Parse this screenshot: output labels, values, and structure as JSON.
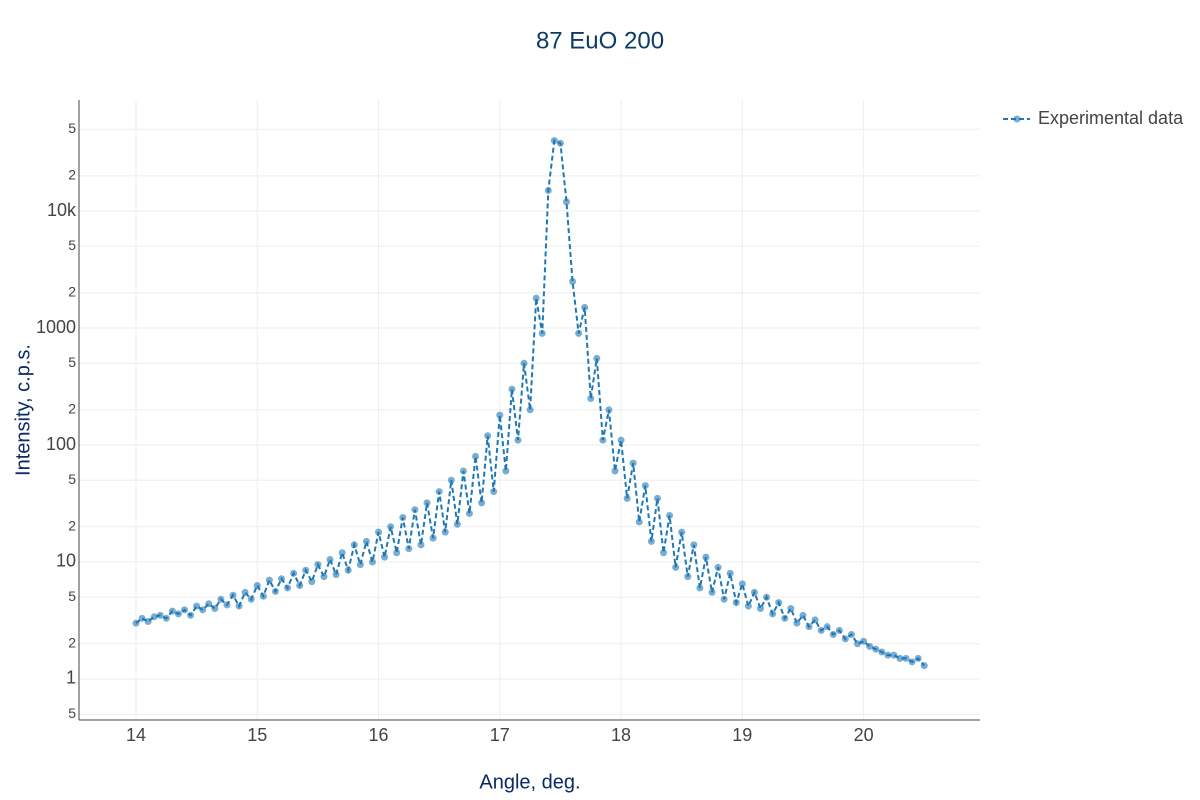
{
  "chart_data": {
    "type": "line",
    "title": "87 EuO 200",
    "xlabel": "Angle, deg.",
    "ylabel": "Intensity, c.p.s.",
    "x": [
      14.0,
      14.05,
      14.1,
      14.15,
      14.2,
      14.25,
      14.3,
      14.35,
      14.4,
      14.45,
      14.5,
      14.55,
      14.6,
      14.65,
      14.7,
      14.75,
      14.8,
      14.85,
      14.9,
      14.95,
      15.0,
      15.05,
      15.1,
      15.15,
      15.2,
      15.25,
      15.3,
      15.35,
      15.4,
      15.45,
      15.5,
      15.55,
      15.6,
      15.65,
      15.7,
      15.75,
      15.8,
      15.85,
      15.9,
      15.95,
      16.0,
      16.05,
      16.1,
      16.15,
      16.2,
      16.25,
      16.3,
      16.35,
      16.4,
      16.45,
      16.5,
      16.55,
      16.6,
      16.65,
      16.7,
      16.75,
      16.8,
      16.85,
      16.9,
      16.95,
      17.0,
      17.05,
      17.1,
      17.15,
      17.2,
      17.25,
      17.3,
      17.35,
      17.4,
      17.45,
      17.5,
      17.55,
      17.6,
      17.65,
      17.7,
      17.75,
      17.8,
      17.85,
      17.9,
      17.95,
      18.0,
      18.05,
      18.1,
      18.15,
      18.2,
      18.25,
      18.3,
      18.35,
      18.4,
      18.45,
      18.5,
      18.55,
      18.6,
      18.65,
      18.7,
      18.75,
      18.8,
      18.85,
      18.9,
      18.95,
      19.0,
      19.05,
      19.1,
      19.15,
      19.2,
      19.25,
      19.3,
      19.35,
      19.4,
      19.45,
      19.5,
      19.55,
      19.6,
      19.65,
      19.7,
      19.75,
      19.8,
      19.85,
      19.9,
      19.95,
      20.0,
      20.05,
      20.1,
      20.15,
      20.2,
      20.25,
      20.3,
      20.35,
      20.4,
      20.45,
      20.5
    ],
    "series": [
      {
        "name": "Experimental data",
        "color": "#1f77b4",
        "values": [
          3.0,
          3.3,
          3.1,
          3.4,
          3.5,
          3.3,
          3.8,
          3.6,
          3.9,
          3.5,
          4.2,
          3.9,
          4.4,
          4.0,
          4.8,
          4.3,
          5.2,
          4.2,
          5.5,
          4.8,
          6.3,
          5.1,
          7.0,
          5.6,
          7.2,
          6.0,
          8.0,
          6.3,
          8.5,
          6.8,
          9.5,
          7.5,
          10.5,
          7.8,
          12,
          8.5,
          14,
          9.5,
          15,
          10,
          18,
          11,
          20,
          12,
          24,
          13,
          28,
          14,
          32,
          16,
          40,
          18,
          50,
          21,
          60,
          26,
          80,
          32,
          120,
          40,
          180,
          60,
          300,
          110,
          500,
          200,
          1800,
          900,
          15000,
          40000,
          38000,
          12000,
          2500,
          900,
          1500,
          250,
          550,
          110,
          200,
          60,
          110,
          35,
          70,
          22,
          45,
          15,
          35,
          12,
          25,
          9,
          18,
          7.5,
          14,
          6,
          11,
          5.5,
          9,
          4.8,
          8,
          4.5,
          6.5,
          4.2,
          5.5,
          4.0,
          5.0,
          3.6,
          4.5,
          3.3,
          4.0,
          3.0,
          3.5,
          2.8,
          3.2,
          2.6,
          2.8,
          2.4,
          2.6,
          2.2,
          2.4,
          2.0,
          2.1,
          1.9,
          1.8,
          1.7,
          1.6,
          1.6,
          1.5,
          1.5,
          1.4,
          1.5,
          1.3
        ]
      }
    ],
    "xlim": [
      13.53,
      20.96
    ],
    "xticks": [
      14,
      15,
      16,
      17,
      18,
      19,
      20
    ],
    "ylim": [
      0.446,
      89000
    ],
    "ylog": true,
    "yticks": [
      {
        "value": 0.5,
        "label": "5"
      },
      1,
      2,
      5,
      10,
      {
        "value": 20,
        "label": "2"
      },
      {
        "value": 50,
        "label": "5"
      },
      100,
      {
        "value": 200,
        "label": "2"
      },
      {
        "value": 500,
        "label": "5"
      },
      1000,
      {
        "value": 2000,
        "label": "2"
      },
      {
        "value": 5000,
        "label": "5"
      },
      {
        "value": 10000,
        "label": "10k"
      },
      {
        "value": 20000,
        "label": "2"
      },
      {
        "value": 50000,
        "label": "5"
      }
    ],
    "grid": true,
    "legend": "top-right"
  }
}
